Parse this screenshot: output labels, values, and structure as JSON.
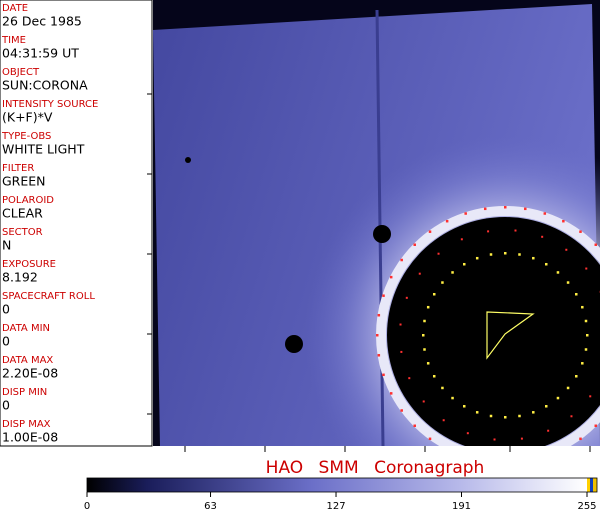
{
  "header": {
    "fields": [
      {
        "label": "DATE",
        "value": "26 Dec 1985"
      },
      {
        "label": "TIME",
        "value": "04:31:59 UT"
      },
      {
        "label": "OBJECT",
        "value": "SUN:CORONA"
      },
      {
        "label": "INTENSITY SOURCE",
        "value": "(K+F)*V"
      },
      {
        "label": "TYPE-OBS",
        "value": "WHITE LIGHT"
      },
      {
        "label": "FILTER",
        "value": "GREEN"
      },
      {
        "label": "POLAROID",
        "value": "CLEAR"
      },
      {
        "label": "SECTOR",
        "value": "N"
      },
      {
        "label": "EXPOSURE",
        "value": "8.192"
      },
      {
        "label": "SPACECRAFT ROLL",
        "value": "0"
      },
      {
        "label": "DATA MIN",
        "value": "0"
      },
      {
        "label": "DATA MAX",
        "value": "2.20E-08"
      },
      {
        "label": "DISP MIN",
        "value": "0"
      },
      {
        "label": "DISP MAX",
        "value": "1.00E-08"
      }
    ]
  },
  "title": "HAO SMM Coronagraph",
  "colorbar": {
    "lim": [
      0,
      255
    ],
    "ticks": [
      0,
      63,
      127,
      191,
      255
    ]
  }
}
